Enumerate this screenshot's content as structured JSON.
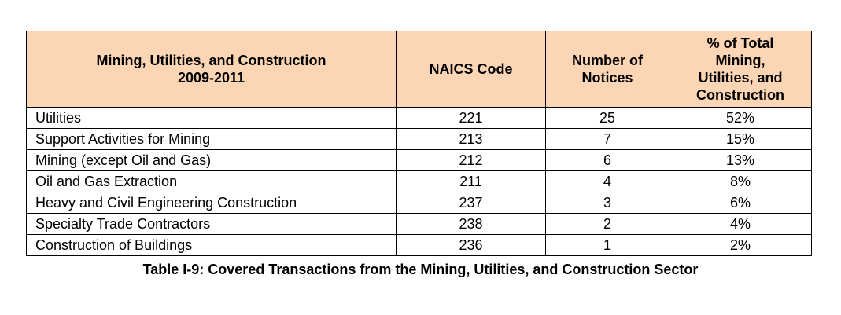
{
  "table": {
    "header_bg": "#fcd5b4",
    "headers": [
      {
        "line1": "Mining, Utilities, and Construction",
        "line2": "2009-2011"
      },
      {
        "line1": "NAICS Code"
      },
      {
        "line1": "Number of",
        "line2": "Notices"
      },
      {
        "line1": "% of Total",
        "line2": "Mining,",
        "line3": "Utilities, and",
        "line4": "Construction"
      }
    ],
    "rows": [
      {
        "name": "Utilities",
        "code": "221",
        "notices": "25",
        "pct": "52%"
      },
      {
        "name": "Support Activities for Mining",
        "code": "213",
        "notices": "7",
        "pct": "15%"
      },
      {
        "name": "Mining (except Oil and Gas)",
        "code": "212",
        "notices": "6",
        "pct": "13%"
      },
      {
        "name": "Oil and Gas Extraction",
        "code": "211",
        "notices": "4",
        "pct": "8%"
      },
      {
        "name": "Heavy and Civil Engineering Construction",
        "code": "237",
        "notices": "3",
        "pct": "6%"
      },
      {
        "name": "Specialty Trade Contractors",
        "code": "238",
        "notices": "2",
        "pct": "4%"
      },
      {
        "name": "Construction of Buildings",
        "code": "236",
        "notices": "1",
        "pct": "2%"
      }
    ]
  },
  "caption": "Table I-9: Covered Transactions from the Mining, Utilities, and Construction Sector"
}
